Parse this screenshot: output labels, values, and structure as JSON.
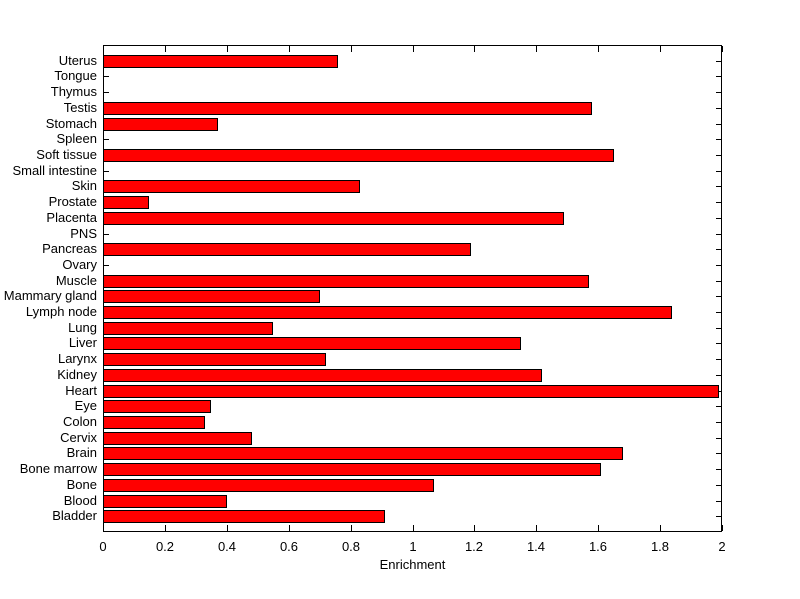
{
  "figure": {
    "background": "#FFFFFF"
  },
  "chart_data": {
    "type": "bar",
    "orientation": "horizontal",
    "title": "",
    "xlabel": "Enrichment",
    "ylabel": "",
    "xlim": [
      0,
      2
    ],
    "xticks": [
      0,
      0.2,
      0.4,
      0.6,
      0.8,
      1,
      1.2,
      1.4,
      1.6,
      1.8,
      2
    ],
    "xtick_labels": [
      "0",
      "0.2",
      "0.4",
      "0.6",
      "0.8",
      "1",
      "1.2",
      "1.4",
      "1.6",
      "1.8",
      "2"
    ],
    "grid": false,
    "legend": false,
    "bar_color": "#FF0000",
    "bar_edge_color": "#000000",
    "axis_color": "#000000",
    "text_color": "#000000",
    "categories": [
      "Uterus",
      "Tongue",
      "Thymus",
      "Testis",
      "Stomach",
      "Spleen",
      "Soft tissue",
      "Small intestine",
      "Skin",
      "Prostate",
      "Placenta",
      "PNS",
      "Pancreas",
      "Ovary",
      "Muscle",
      "Mammary gland",
      "Lymph node",
      "Lung",
      "Liver",
      "Larynx",
      "Kidney",
      "Heart",
      "Eye",
      "Colon",
      "Cervix",
      "Brain",
      "Bone marrow",
      "Bone",
      "Blood",
      "Bladder"
    ],
    "values": [
      0.76,
      0,
      0,
      1.58,
      0.37,
      0,
      1.65,
      0,
      0.83,
      0.15,
      1.49,
      0,
      1.19,
      0,
      1.57,
      0.7,
      1.84,
      0.55,
      1.35,
      0.72,
      1.42,
      1.99,
      0.35,
      0.33,
      0.48,
      1.68,
      1.61,
      1.07,
      0.4,
      0.91
    ]
  }
}
